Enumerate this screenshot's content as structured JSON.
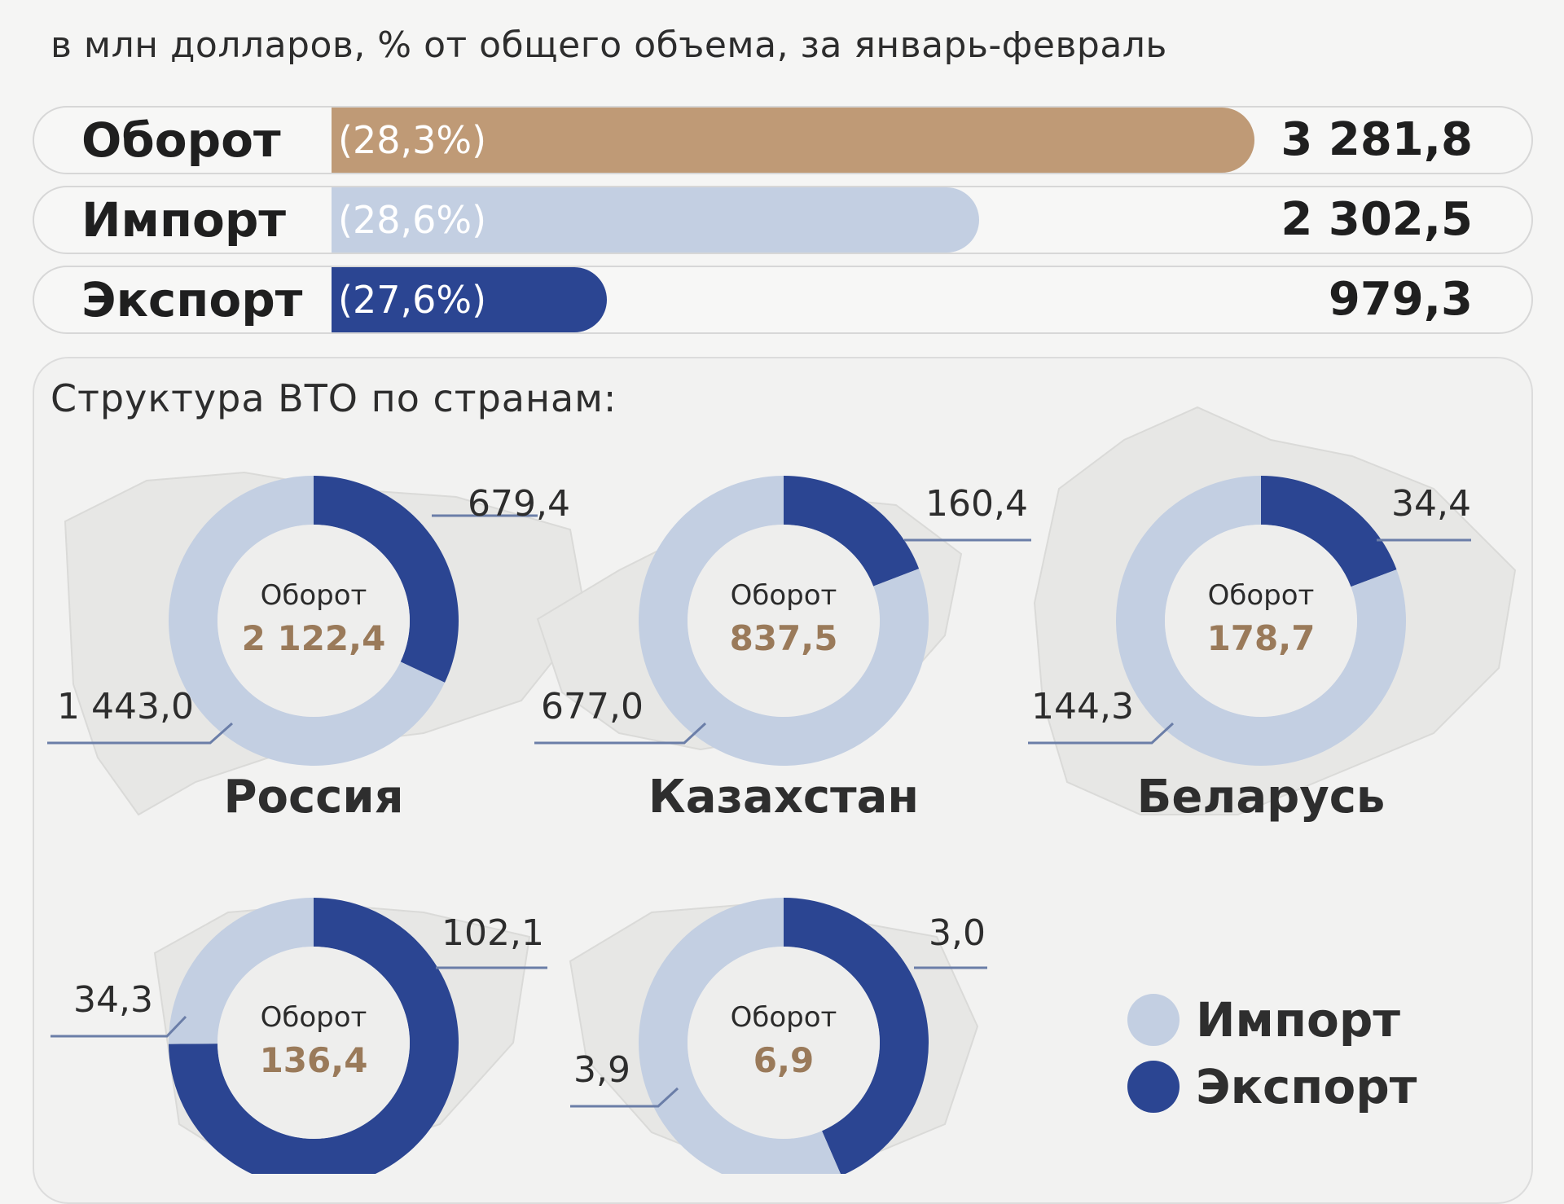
{
  "subtitle": "в млн долларов, % от общего объема, за январь-февраль",
  "colors": {
    "turnover": "#bf9a76",
    "import": "#c3cfe2",
    "export": "#2b4592",
    "turnover_text": "#9a7a5a"
  },
  "bars": [
    {
      "label": "Оборот",
      "share": "(28,3%)",
      "value_text": "3 281,8",
      "value": 3281.8
    },
    {
      "label": "Импорт",
      "share": "(28,6%)",
      "value_text": "2 302,5",
      "value": 2302.5
    },
    {
      "label": "Экспорт",
      "share": "(27,6%)",
      "value_text": "979,3",
      "value": 979.3
    }
  ],
  "panel_title": "Структура ВТО по странам:",
  "legend": {
    "import": "Импорт",
    "export": "Экспорт"
  },
  "chart_data": {
    "type": "pie",
    "center_label": "Оборот",
    "countries": [
      {
        "name": "Россия",
        "total_text": "2 122,4",
        "export": 679.4,
        "import": 1443.0,
        "export_text": "679,4",
        "import_text": "1 443,0"
      },
      {
        "name": "Казахстан",
        "total_text": "837,5",
        "export": 160.4,
        "import": 677.0,
        "export_text": "160,4",
        "import_text": "677,0"
      },
      {
        "name": "Беларусь",
        "total_text": "178,7",
        "export": 34.4,
        "import": 144.3,
        "export_text": "34,4",
        "import_text": "144,3"
      },
      {
        "name": "",
        "total_text": "136,4",
        "export": 102.1,
        "import": 34.3,
        "export_text": "102,1",
        "import_text": "34,3"
      },
      {
        "name": "",
        "total_text": "6,9",
        "export": 3.0,
        "import": 3.9,
        "export_text": "3,0",
        "import_text": "3,9"
      }
    ]
  }
}
